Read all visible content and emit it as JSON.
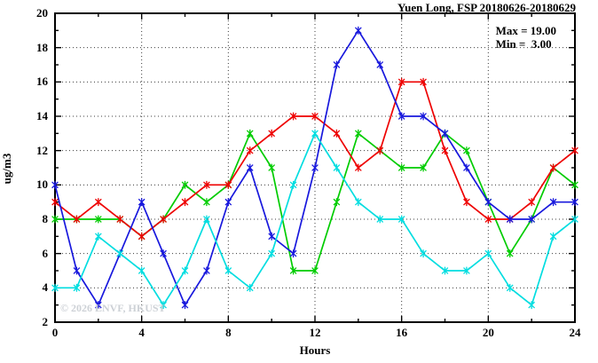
{
  "window": {
    "title": "Yuen Long, FSP 20180626-20180629"
  },
  "chart_data": {
    "type": "line",
    "title": "Yuen Long, FSP 20180626-20180629",
    "xlabel": "Hours",
    "ylabel": "ug/m3",
    "xlim": [
      0,
      24
    ],
    "ylim": [
      2,
      20
    ],
    "x_major_ticks": [
      0,
      4,
      8,
      12,
      16,
      20,
      24
    ],
    "x_minor_step": 2,
    "y_major_ticks": [
      2,
      4,
      6,
      8,
      10,
      12,
      14,
      16,
      18,
      20
    ],
    "y_minor_step": 1,
    "grid": true,
    "legend_position": "top-right-inside",
    "x": [
      0,
      1,
      2,
      3,
      4,
      5,
      6,
      7,
      8,
      9,
      10,
      11,
      12,
      13,
      14,
      15,
      16,
      17,
      18,
      19,
      20,
      21,
      22,
      23,
      24
    ],
    "series": [
      {
        "name": "green",
        "color": "#00cc00",
        "values": [
          8,
          8,
          8,
          8,
          7,
          8,
          10,
          9,
          10,
          13,
          11,
          5,
          5,
          9,
          13,
          12,
          11,
          11,
          13,
          12,
          9,
          6,
          8,
          11,
          10
        ]
      },
      {
        "name": "red",
        "color": "#ee0000",
        "values": [
          9,
          8,
          9,
          8,
          7,
          8,
          9,
          10,
          10,
          12,
          13,
          14,
          14,
          13,
          11,
          12,
          16,
          16,
          12,
          9,
          8,
          8,
          9,
          11,
          12
        ]
      },
      {
        "name": "blue",
        "color": "#1818dd",
        "values": [
          10,
          5,
          3,
          6,
          9,
          6,
          3,
          5,
          9,
          11,
          7,
          6,
          11,
          17,
          19,
          17,
          14,
          14,
          13,
          11,
          9,
          8,
          8,
          9,
          9
        ]
      },
      {
        "name": "cyan",
        "color": "#00dde0",
        "values": [
          4,
          4,
          7,
          6,
          5,
          3,
          5,
          8,
          5,
          4,
          6,
          10,
          13,
          11,
          9,
          8,
          8,
          6,
          5,
          5,
          6,
          4,
          3,
          7,
          8
        ]
      }
    ],
    "annotations": {
      "max_label": "Max = 19.00",
      "min_label": "Min =  3.00"
    },
    "watermark": "© 2026 ENVF, HKUST"
  }
}
